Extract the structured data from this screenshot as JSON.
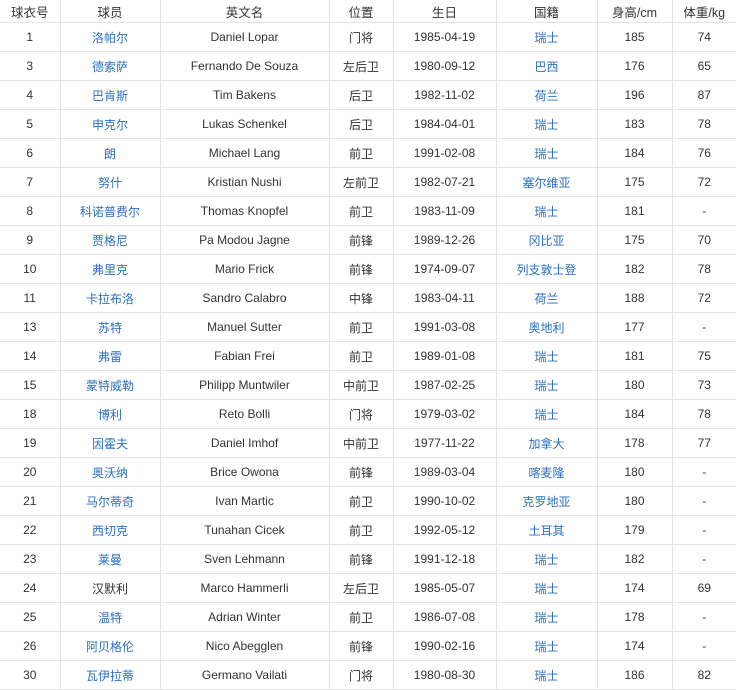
{
  "colors": {
    "link": "#2b6fbf",
    "text": "#333333",
    "border": "#e4e4e4"
  },
  "headers": [
    "球衣号",
    "球员",
    "英文名",
    "位置",
    "生日",
    "国籍",
    "身高/cm",
    "体重/kg"
  ],
  "rows": [
    {
      "no": "1",
      "name": "洛帕尔",
      "name_link": true,
      "en": "Daniel Lopar",
      "pos": "门将",
      "birth": "1985-04-19",
      "nat": "瑞士",
      "h": "185",
      "w": "74"
    },
    {
      "no": "3",
      "name": "德索萨",
      "name_link": true,
      "en": "Fernando De Souza",
      "pos": "左后卫",
      "birth": "1980-09-12",
      "nat": "巴西",
      "h": "176",
      "w": "65"
    },
    {
      "no": "4",
      "name": "巴肯斯",
      "name_link": true,
      "en": "Tim Bakens",
      "pos": "后卫",
      "birth": "1982-11-02",
      "nat": "荷兰",
      "h": "196",
      "w": "87"
    },
    {
      "no": "5",
      "name": "申克尔",
      "name_link": true,
      "en": "Lukas Schenkel",
      "pos": "后卫",
      "birth": "1984-04-01",
      "nat": "瑞士",
      "h": "183",
      "w": "78"
    },
    {
      "no": "6",
      "name": "朗",
      "name_link": true,
      "en": "Michael Lang",
      "pos": "前卫",
      "birth": "1991-02-08",
      "nat": "瑞士",
      "h": "184",
      "w": "76"
    },
    {
      "no": "7",
      "name": "努什",
      "name_link": true,
      "en": "Kristian Nushi",
      "pos": "左前卫",
      "birth": "1982-07-21",
      "nat": "塞尔维亚",
      "h": "175",
      "w": "72"
    },
    {
      "no": "8",
      "name": "科诺普费尔",
      "name_link": true,
      "en": "Thomas Knopfel",
      "pos": "前卫",
      "birth": "1983-11-09",
      "nat": "瑞士",
      "h": "181",
      "w": "-"
    },
    {
      "no": "9",
      "name": "贾格尼",
      "name_link": true,
      "en": "Pa Modou Jagne",
      "pos": "前锋",
      "birth": "1989-12-26",
      "nat": "冈比亚",
      "h": "175",
      "w": "70"
    },
    {
      "no": "10",
      "name": "弗里克",
      "name_link": true,
      "en": "Mario Frick",
      "pos": "前锋",
      "birth": "1974-09-07",
      "nat": "列支敦士登",
      "h": "182",
      "w": "78"
    },
    {
      "no": "11",
      "name": "卡拉布洛",
      "name_link": true,
      "en": "Sandro Calabro",
      "pos": "中锋",
      "birth": "1983-04-11",
      "nat": "荷兰",
      "h": "188",
      "w": "72"
    },
    {
      "no": "13",
      "name": "苏特",
      "name_link": true,
      "en": "Manuel Sutter",
      "pos": "前卫",
      "birth": "1991-03-08",
      "nat": "奥地利",
      "h": "177",
      "w": "-"
    },
    {
      "no": "14",
      "name": "弗雷",
      "name_link": true,
      "en": "Fabian Frei",
      "pos": "前卫",
      "birth": "1989-01-08",
      "nat": "瑞士",
      "h": "181",
      "w": "75"
    },
    {
      "no": "15",
      "name": "蒙特威勒",
      "name_link": true,
      "en": "Philipp Muntwiler",
      "pos": "中前卫",
      "birth": "1987-02-25",
      "nat": "瑞士",
      "h": "180",
      "w": "73"
    },
    {
      "no": "18",
      "name": "博利",
      "name_link": true,
      "en": "Reto Bolli",
      "pos": "门将",
      "birth": "1979-03-02",
      "nat": "瑞士",
      "h": "184",
      "w": "78"
    },
    {
      "no": "19",
      "name": "因霍夫",
      "name_link": true,
      "en": "Daniel Imhof",
      "pos": "中前卫",
      "birth": "1977-11-22",
      "nat": "加拿大",
      "h": "178",
      "w": "77"
    },
    {
      "no": "20",
      "name": "奥沃纳",
      "name_link": true,
      "en": "Brice Owona",
      "pos": "前锋",
      "birth": "1989-03-04",
      "nat": "喀麦隆",
      "h": "180",
      "w": "-"
    },
    {
      "no": "21",
      "name": "马尔蒂奇",
      "name_link": true,
      "en": "Ivan Martic",
      "pos": "前卫",
      "birth": "1990-10-02",
      "nat": "克罗地亚",
      "h": "180",
      "w": "-"
    },
    {
      "no": "22",
      "name": "西切克",
      "name_link": true,
      "en": "Tunahan Cicek",
      "pos": "前卫",
      "birth": "1992-05-12",
      "nat": "土耳其",
      "h": "179",
      "w": "-"
    },
    {
      "no": "23",
      "name": "莱曼",
      "name_link": true,
      "en": "Sven Lehmann",
      "pos": "前锋",
      "birth": "1991-12-18",
      "nat": "瑞士",
      "h": "182",
      "w": "-"
    },
    {
      "no": "24",
      "name": "汉默利",
      "name_link": false,
      "en": "Marco Hammerli",
      "pos": "左后卫",
      "birth": "1985-05-07",
      "nat": "瑞士",
      "h": "174",
      "w": "69"
    },
    {
      "no": "25",
      "name": "温特",
      "name_link": true,
      "en": "Adrian Winter",
      "pos": "前卫",
      "birth": "1986-07-08",
      "nat": "瑞士",
      "h": "178",
      "w": "-"
    },
    {
      "no": "26",
      "name": "阿贝格伦",
      "name_link": true,
      "en": "Nico Abegglen",
      "pos": "前锋",
      "birth": "1990-02-16",
      "nat": "瑞士",
      "h": "174",
      "w": "-"
    },
    {
      "no": "30",
      "name": "瓦伊拉蒂",
      "name_link": true,
      "en": "Germano Vailati",
      "pos": "门将",
      "birth": "1980-08-30",
      "nat": "瑞士",
      "h": "186",
      "w": "82"
    }
  ]
}
